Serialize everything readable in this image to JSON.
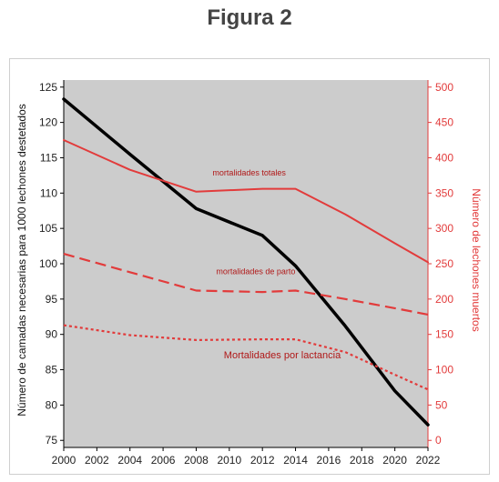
{
  "figure": {
    "title": "Figura 2"
  },
  "colors": {
    "plot_bg": "#cccccc",
    "left_axis": "#000000",
    "right_axis": "#e23b3b",
    "annotation": "#b01818"
  },
  "chart_data": {
    "type": "line",
    "title": "",
    "xlabel": "",
    "ylabel": "Número de camadas necesarias para 1000 lechones destetados",
    "y2label": "Número de lechones muertos",
    "xlim": [
      2000,
      2022
    ],
    "ylim": [
      74,
      126
    ],
    "y2lim": [
      -10,
      510
    ],
    "x_ticks": [
      "2000",
      "2002",
      "2004",
      "2006",
      "2008",
      "2010",
      "2012",
      "2014",
      "2016",
      "2018",
      "2020",
      "2022"
    ],
    "y_ticks": [
      "75",
      "80",
      "85",
      "90",
      "95",
      "100",
      "105",
      "110",
      "115",
      "120",
      "125"
    ],
    "y2_ticks": [
      "0",
      "50",
      "100",
      "150",
      "200",
      "250",
      "300",
      "350",
      "400",
      "450",
      "500"
    ],
    "grid": false,
    "series": [
      {
        "name": "",
        "axis": "left",
        "style": "solid-thick",
        "color": "#000000",
        "x": [
          2000,
          2004,
          2008,
          2012,
          2014,
          2017,
          2020,
          2022
        ],
        "y": [
          123.3,
          115.5,
          107.8,
          104.0,
          99.7,
          91.2,
          82.0,
          77.2
        ]
      },
      {
        "name": "mortalidades totales",
        "axis": "right",
        "style": "solid",
        "color": "#e23b3b",
        "x": [
          2000,
          2004,
          2008,
          2012,
          2014,
          2017,
          2020,
          2022
        ],
        "y": [
          425,
          383,
          352,
          356,
          356,
          320,
          279,
          252
        ]
      },
      {
        "name": "mortalidades de parto",
        "axis": "right",
        "style": "dashed",
        "color": "#e23b3b",
        "x": [
          2000,
          2004,
          2008,
          2012,
          2014,
          2017,
          2020,
          2022
        ],
        "y": [
          264,
          238,
          212,
          210,
          212,
          200,
          187,
          178
        ]
      },
      {
        "name": "Mortalidades por lactancia",
        "axis": "right",
        "style": "dotted",
        "color": "#e23b3b",
        "x": [
          2000,
          2004,
          2008,
          2012,
          2014,
          2017,
          2020,
          2022
        ],
        "y": [
          163,
          149,
          142,
          143,
          143,
          125,
          93,
          72
        ]
      }
    ],
    "annotations": [
      {
        "text": "mortalidades totales",
        "x": 2011.2,
        "y2": 375,
        "size": 9
      },
      {
        "text": "mortalidades de parto",
        "x": 2011.6,
        "y2": 235,
        "size": 9
      },
      {
        "text": "Mortalidades por lactancia",
        "x": 2013.2,
        "y2": 116,
        "size": 11
      }
    ]
  }
}
